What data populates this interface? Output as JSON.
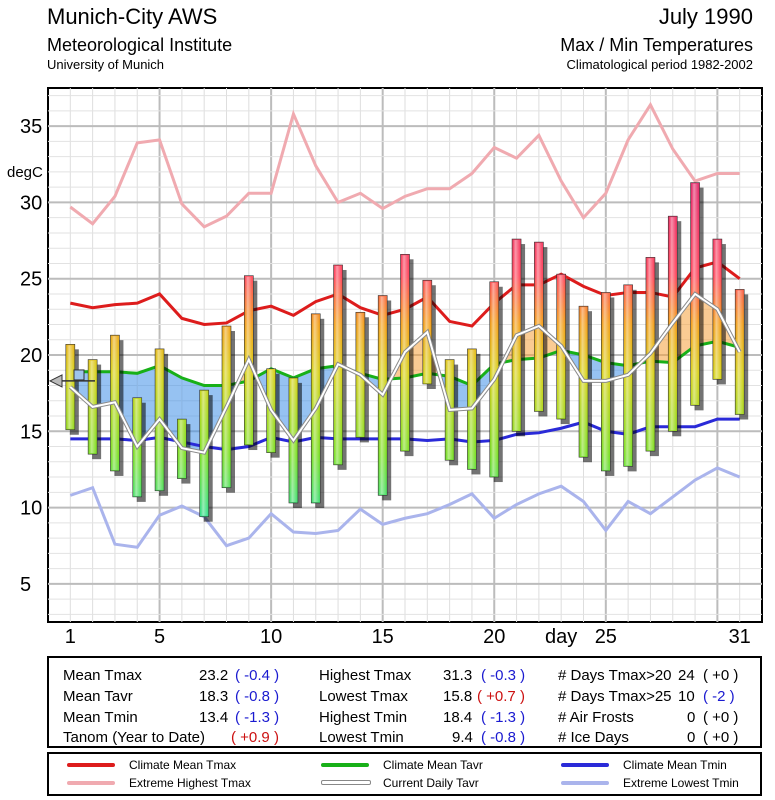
{
  "header": {
    "station": "Munich-City AWS",
    "institute": "Meteorological Institute",
    "university": "University of Munich",
    "period": "July 1990",
    "chart_title": "Max / Min Temperatures",
    "climatology": "Climatological period 1982-2002"
  },
  "chart_data": {
    "type": "bar",
    "title": "Max / Min Temperatures",
    "xlabel": "day",
    "ylabel": "degC",
    "ylim": [
      2.5,
      37.5
    ],
    "xlim": [
      0,
      32
    ],
    "yticks": [
      5,
      10,
      15,
      20,
      25,
      30,
      35
    ],
    "xticks": [
      1,
      5,
      10,
      15,
      20,
      25,
      31
    ],
    "grid": true,
    "days": [
      1,
      2,
      3,
      4,
      5,
      6,
      7,
      8,
      9,
      10,
      11,
      12,
      13,
      14,
      15,
      16,
      17,
      18,
      19,
      20,
      21,
      22,
      23,
      24,
      25,
      26,
      27,
      28,
      29,
      30,
      31
    ],
    "series": [
      {
        "name": "Tmax",
        "values": [
          20.7,
          19.7,
          21.3,
          17.2,
          20.4,
          15.8,
          17.7,
          21.9,
          25.2,
          19.1,
          18.5,
          22.7,
          25.9,
          22.8,
          23.9,
          26.6,
          24.9,
          19.7,
          20.4,
          24.8,
          27.6,
          27.4,
          25.3,
          23.2,
          24.1,
          24.6,
          26.4,
          29.1,
          31.3,
          27.6,
          24.3
        ]
      },
      {
        "name": "Tmin",
        "values": [
          15.1,
          13.5,
          12.4,
          10.7,
          11.1,
          11.9,
          9.4,
          11.3,
          14.1,
          13.6,
          10.3,
          10.3,
          12.8,
          14.6,
          10.8,
          13.7,
          18.1,
          13.1,
          12.5,
          12.0,
          15.0,
          16.3,
          15.8,
          13.3,
          12.4,
          12.7,
          13.7,
          15.0,
          16.7,
          18.4,
          16.1
        ]
      },
      {
        "name": "Current Daily Tavr",
        "values": [
          17.9,
          16.6,
          16.9,
          14.0,
          15.8,
          13.9,
          13.6,
          16.6,
          19.7,
          16.4,
          14.4,
          16.5,
          19.4,
          18.7,
          17.4,
          20.2,
          21.5,
          16.4,
          16.5,
          18.4,
          21.3,
          21.9,
          20.6,
          18.3,
          18.3,
          18.7,
          20.1,
          22.1,
          24.0,
          23.0,
          20.2
        ]
      },
      {
        "name": "Climate Mean Tmax",
        "values": [
          23.4,
          23.1,
          23.3,
          23.4,
          24.0,
          22.4,
          22.0,
          22.1,
          22.9,
          23.2,
          22.6,
          23.5,
          24.0,
          23.1,
          22.6,
          23.0,
          23.8,
          22.2,
          21.9,
          23.4,
          24.6,
          24.6,
          25.3,
          24.5,
          23.9,
          24.1,
          24.1,
          23.8,
          25.7,
          26.1,
          25.0
        ]
      },
      {
        "name": "Climate Mean Tavr",
        "values": [
          18.9,
          18.9,
          18.9,
          18.8,
          19.3,
          18.5,
          18.0,
          18.0,
          18.3,
          19.1,
          18.5,
          19.1,
          19.3,
          18.8,
          18.4,
          18.5,
          18.8,
          18.6,
          18.0,
          19.4,
          19.7,
          19.8,
          20.3,
          20.0,
          19.5,
          19.3,
          19.6,
          19.5,
          20.6,
          20.9,
          20.5
        ]
      },
      {
        "name": "Climate Mean Tmin",
        "values": [
          14.5,
          14.5,
          14.5,
          14.4,
          14.6,
          14.3,
          14.0,
          13.8,
          14.0,
          14.6,
          14.3,
          14.6,
          14.5,
          14.5,
          14.5,
          14.5,
          14.4,
          14.5,
          14.3,
          14.4,
          14.8,
          14.9,
          15.2,
          15.6,
          15.0,
          14.8,
          15.3,
          15.3,
          15.3,
          15.8,
          15.8
        ]
      },
      {
        "name": "Extreme Highest Tmax",
        "values": [
          29.7,
          28.6,
          30.4,
          33.9,
          34.1,
          29.9,
          28.4,
          29.1,
          30.6,
          30.6,
          35.8,
          32.4,
          30.0,
          30.6,
          29.6,
          30.4,
          30.9,
          30.9,
          31.9,
          33.6,
          32.9,
          34.4,
          31.4,
          29.0,
          30.6,
          34.1,
          36.4,
          33.5,
          31.4,
          31.9,
          31.9
        ]
      },
      {
        "name": "Extreme Lowest Tmin",
        "values": [
          10.8,
          11.3,
          7.6,
          7.4,
          9.5,
          10.1,
          9.4,
          7.5,
          8.0,
          9.6,
          8.4,
          8.3,
          8.5,
          9.9,
          8.9,
          9.3,
          9.6,
          10.2,
          10.9,
          9.3,
          10.2,
          10.9,
          11.4,
          10.4,
          8.5,
          10.4,
          9.6,
          10.7,
          11.8,
          12.6,
          12.0
        ]
      }
    ],
    "tanom_marker": 18.3
  },
  "stats": {
    "mean_tmax_label": "Mean Tmax",
    "mean_tmax_value": "23.2",
    "mean_tmax_anom": "( -0.4 )",
    "mean_tavr_label": "Mean Tavr",
    "mean_tavr_value": "18.3",
    "mean_tavr_anom": "( -0.8 )",
    "mean_tmin_label": "Mean Tmin",
    "mean_tmin_value": "13.4",
    "mean_tmin_anom": "( -1.3 )",
    "tanom_label": "Tanom (Year to Date)",
    "tanom_anom": "( +0.9 )",
    "highest_tmax_label": "Highest Tmax",
    "highest_tmax_value": "31.3",
    "highest_tmax_anom": "( -0.3 )",
    "lowest_tmax_label": "Lowest Tmax",
    "lowest_tmax_value": "15.8",
    "lowest_tmax_anom": "( +0.7 )",
    "highest_tmin_label": "Highest Tmin",
    "highest_tmin_value": "18.4",
    "highest_tmin_anom": "( -1.3 )",
    "lowest_tmin_label": "Lowest Tmin",
    "lowest_tmin_value": "9.4",
    "lowest_tmin_anom": "( -0.8 )",
    "days20_label": "# Days Tmax>20",
    "days20_value": "24",
    "days20_anom": "( +0 )",
    "days25_label": "# Days Tmax>25",
    "days25_value": "10",
    "days25_anom": "( -2 )",
    "air_frosts_label": "# Air Frosts",
    "air_frosts_value": "0",
    "air_frosts_anom": "( +0 )",
    "ice_days_label": "# Ice Days",
    "ice_days_value": "0",
    "ice_days_anom": "( +0 )"
  },
  "legend": {
    "climate_mean_tmax": "Climate Mean Tmax",
    "extreme_highest_tmax": "Extreme Highest Tmax",
    "climate_mean_tavr": "Climate Mean Tavr",
    "current_daily_tavr": "Current Daily Tavr",
    "climate_mean_tmin": "Climate Mean Tmin",
    "extreme_lowest_tmin": "Extreme Lowest Tmin"
  },
  "colors": {
    "climate_mean_tmax": "#dd1c1c",
    "extreme_highest_tmax": "#f0aab0",
    "climate_mean_tavr": "#18b018",
    "current_daily_tavr": "#a8a8a8",
    "climate_mean_tmin": "#2a2ad8",
    "extreme_lowest_tmin": "#aab4ec",
    "warm_fill": "#f5a13a",
    "cool_fill": "#3f8fe8"
  }
}
